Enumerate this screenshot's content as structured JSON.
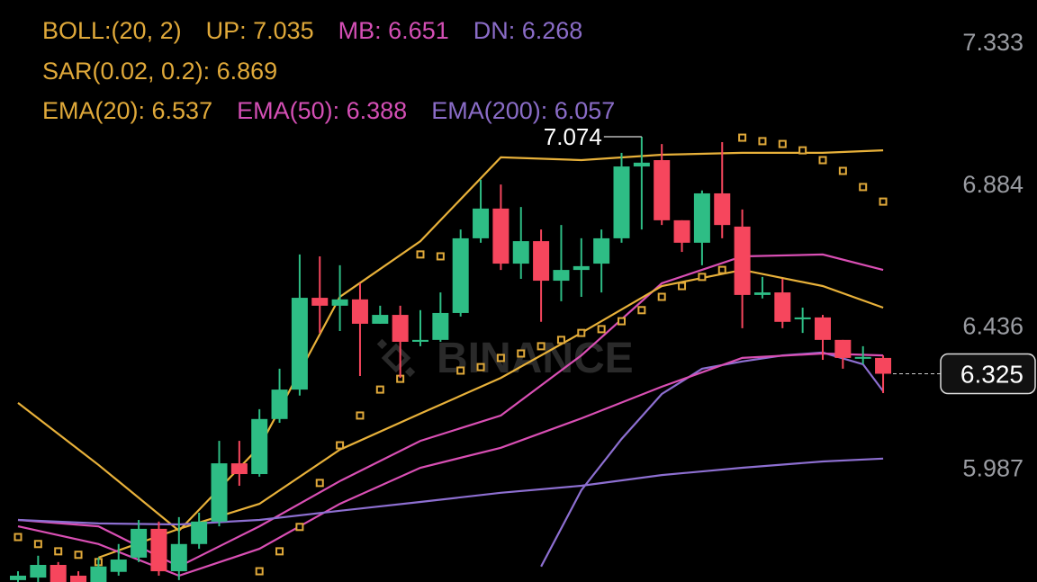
{
  "chart_data": {
    "type": "candlestick",
    "ylim": [
      5.667,
      7.506
    ],
    "yticks": [
      7.333,
      6.884,
      6.436,
      5.987
    ],
    "grid": false,
    "watermark": "BINANCE",
    "indicator_labels": [
      [
        {
          "text": "BOLL:(20, 2)",
          "color": "#e0a93a"
        },
        {
          "text": "UP: 7.035",
          "color": "#e0a93a"
        },
        {
          "text": "MB: 6.651",
          "color": "#d44fb5"
        },
        {
          "text": "DN: 6.268",
          "color": "#8a6cc7"
        }
      ],
      [
        {
          "text": "SAR(0.02, 0.2): 6.869",
          "color": "#e0a93a"
        }
      ],
      [
        {
          "text": "EMA(20): 6.537",
          "color": "#e0a93a"
        },
        {
          "text": "EMA(50): 6.388",
          "color": "#d44fb5"
        },
        {
          "text": "EMA(200): 6.057",
          "color": "#8a6cc7"
        }
      ]
    ],
    "up_color": "#2ebd85",
    "down_color": "#f6465d",
    "open": [
      5.673,
      5.681,
      5.721,
      5.687,
      5.667,
      5.699,
      5.744,
      5.835,
      5.701,
      5.787,
      5.858,
      6.042,
      6.008,
      6.182,
      6.275,
      6.565,
      6.54,
      6.56,
      6.483,
      6.511,
      6.426,
      6.432,
      6.517,
      6.753,
      6.847,
      6.673,
      6.744,
      6.619,
      6.653,
      6.673,
      6.753,
      6.98,
      7.0,
      6.81,
      6.739,
      6.895,
      6.79,
      6.574,
      6.582,
      6.497,
      6.503,
      6.432,
      6.375,
      6.375
    ],
    "high": [
      5.701,
      5.75,
      5.73,
      5.701,
      5.744,
      5.787,
      5.863,
      5.858,
      5.872,
      5.886,
      6.113,
      6.113,
      6.213,
      6.341,
      6.702,
      6.696,
      6.668,
      6.611,
      6.54,
      6.54,
      6.526,
      6.582,
      6.781,
      6.938,
      6.923,
      6.852,
      6.781,
      6.795,
      6.753,
      6.781,
      7.023,
      7.074,
      7.051,
      6.81,
      6.904,
      7.057,
      6.844,
      6.631,
      6.625,
      6.534,
      6.511,
      6.432,
      6.412,
      6.383
    ],
    "low": [
      5.667,
      5.667,
      5.667,
      5.667,
      5.667,
      5.687,
      5.73,
      5.687,
      5.673,
      5.772,
      5.843,
      5.971,
      6.0,
      6.17,
      6.256,
      6.454,
      6.46,
      6.318,
      6.483,
      6.312,
      6.412,
      6.426,
      6.506,
      6.739,
      6.653,
      6.625,
      6.489,
      6.554,
      6.568,
      6.582,
      6.739,
      6.781,
      6.795,
      6.71,
      6.668,
      6.753,
      6.469,
      6.563,
      6.469,
      6.454,
      6.369,
      6.341,
      6.355,
      6.264
    ],
    "close": [
      5.687,
      5.721,
      5.667,
      5.667,
      5.716,
      5.738,
      5.835,
      5.701,
      5.787,
      5.858,
      6.042,
      6.008,
      6.182,
      6.275,
      6.565,
      6.54,
      6.56,
      6.483,
      6.511,
      6.426,
      6.432,
      6.517,
      6.753,
      6.847,
      6.673,
      6.744,
      6.619,
      6.653,
      6.665,
      6.753,
      6.98,
      6.992,
      6.81,
      6.739,
      6.895,
      6.795,
      6.574,
      6.582,
      6.489,
      6.503,
      6.432,
      6.375,
      6.378,
      6.325
    ],
    "lines": [
      {
        "color": "#e8b13a",
        "x": [
          0,
          4,
          8,
          12,
          16,
          20,
          24,
          28,
          32,
          36,
          40,
          43
        ],
        "values": [
          6.233,
          6.037,
          5.829,
          6.094,
          6.568,
          6.744,
          7.009,
          7.0,
          7.017,
          7.023,
          7.023,
          7.031
        ]
      },
      {
        "color": "#d94fb4",
        "x": [
          0,
          4,
          8,
          12,
          16,
          20,
          24,
          28,
          32,
          36,
          40,
          43
        ],
        "values": [
          5.863,
          5.843,
          5.716,
          5.843,
          5.986,
          6.113,
          6.193,
          6.383,
          6.611,
          6.696,
          6.702,
          6.653
        ]
      },
      {
        "color": "#8d6fd1",
        "x": [
          26,
          28,
          30,
          32,
          34,
          36,
          38,
          40,
          42,
          43
        ],
        "values": [
          5.716,
          5.957,
          6.119,
          6.261,
          6.341,
          6.364,
          6.383,
          6.392,
          6.355,
          6.27
        ]
      },
      {
        "color": "#e8b13a",
        "x": [
          4,
          8,
          12,
          16,
          20,
          24,
          28,
          32,
          36,
          40,
          43
        ],
        "values": [
          5.744,
          5.835,
          5.914,
          6.085,
          6.199,
          6.312,
          6.454,
          6.602,
          6.653,
          6.602,
          6.534
        ]
      },
      {
        "color": "#d94fb4",
        "x": [
          0,
          4,
          8,
          12,
          16,
          20,
          24,
          28,
          32,
          36,
          40,
          43
        ],
        "values": [
          5.843,
          5.787,
          5.687,
          5.772,
          5.914,
          6.028,
          6.091,
          6.184,
          6.284,
          6.375,
          6.389,
          6.383
        ]
      },
      {
        "color": "#8d6fd1",
        "x": [
          0,
          4,
          8,
          12,
          16,
          20,
          24,
          28,
          32,
          36,
          40,
          43
        ],
        "values": [
          5.863,
          5.852,
          5.849,
          5.863,
          5.892,
          5.92,
          5.949,
          5.971,
          6.005,
          6.028,
          6.048,
          6.057
        ]
      }
    ],
    "sar": {
      "color": "#e0a93a",
      "x": [
        0,
        1,
        2,
        3,
        4,
        12,
        13,
        14,
        15,
        16,
        17,
        18,
        19,
        20,
        21,
        22,
        23,
        24,
        25,
        26,
        27,
        28,
        29,
        30,
        31,
        32,
        33,
        34,
        35,
        36,
        37,
        38,
        39,
        40,
        41,
        42,
        43
      ],
      "values": [
        5.809,
        5.787,
        5.764,
        5.753,
        5.73,
        5.701,
        5.764,
        5.841,
        5.98,
        6.099,
        6.193,
        6.275,
        6.309,
        6.702,
        6.696,
        6.335,
        6.346,
        6.375,
        6.389,
        6.412,
        6.432,
        6.454,
        6.466,
        6.491,
        6.526,
        6.568,
        6.602,
        6.631,
        6.653,
        7.071,
        7.06,
        7.051,
        7.031,
        7.0,
        6.966,
        6.915,
        6.869
      ]
    },
    "high_annotation": 7.074,
    "last_price": 6.325
  }
}
